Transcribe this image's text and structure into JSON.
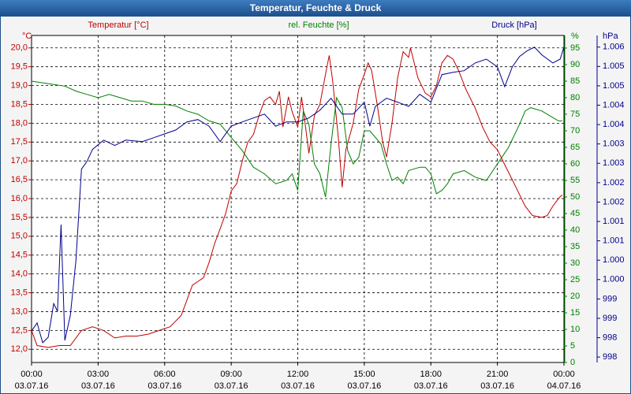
{
  "chart_data": {
    "type": "line",
    "title": "Temperatur, Feuchte & Druck",
    "ylabel": "°C",
    "y2label": "%",
    "y3label": "hPa",
    "xlim": [
      0,
      24
    ],
    "xticks": [
      {
        "value": 0,
        "label": "00:00"
      },
      {
        "value": 3,
        "label": "03:00"
      },
      {
        "value": 6,
        "label": "06:00"
      },
      {
        "value": 9,
        "label": "09:00"
      },
      {
        "value": 12,
        "label": "12:00"
      },
      {
        "value": 15,
        "label": "15:00"
      },
      {
        "value": 18,
        "label": "18:00"
      },
      {
        "value": 21,
        "label": "21:00"
      },
      {
        "value": 24,
        "label": "00:00"
      }
    ],
    "xtick_dates": [
      "03.07.16",
      "03.07.16",
      "03.07.16",
      "03.07.16",
      "03.07.16",
      "03.07.16",
      "03.07.16",
      "03.07.16",
      "04.07.16"
    ],
    "ylim": [
      11.65,
      20.33
    ],
    "yticks": [
      {
        "value": 12.0,
        "label": "12,0"
      },
      {
        "value": 12.5,
        "label": "12,5"
      },
      {
        "value": 13.0,
        "label": "13,0"
      },
      {
        "value": 13.5,
        "label": "13,5"
      },
      {
        "value": 14.0,
        "label": "14,0"
      },
      {
        "value": 14.5,
        "label": "14,5"
      },
      {
        "value": 15.0,
        "label": "15,0"
      },
      {
        "value": 15.5,
        "label": "15,5"
      },
      {
        "value": 16.0,
        "label": "16,0"
      },
      {
        "value": 16.5,
        "label": "16,5"
      },
      {
        "value": 17.0,
        "label": "17,0"
      },
      {
        "value": 17.5,
        "label": "17,5"
      },
      {
        "value": 18.0,
        "label": "18,0"
      },
      {
        "value": 18.5,
        "label": "18,5"
      },
      {
        "value": 19.0,
        "label": "19,0"
      },
      {
        "value": 19.5,
        "label": "19,5"
      },
      {
        "value": 20.0,
        "label": "20,0"
      }
    ],
    "y2lim": [
      0,
      98.8
    ],
    "y2ticks": [
      0,
      5,
      10,
      15,
      20,
      25,
      30,
      35,
      40,
      45,
      50,
      55,
      60,
      65,
      70,
      75,
      80,
      85,
      90,
      95
    ],
    "y3lim": [
      997.61,
      1006.05
    ],
    "y3ticks": [
      {
        "value": 997.75,
        "label": "998"
      },
      {
        "value": 998.25,
        "label": "998"
      },
      {
        "value": 998.75,
        "label": "999"
      },
      {
        "value": 999.25,
        "label": "999"
      },
      {
        "value": 999.75,
        "label": "1.000"
      },
      {
        "value": 1000.25,
        "label": "1.000"
      },
      {
        "value": 1000.75,
        "label": "1.001"
      },
      {
        "value": 1001.25,
        "label": "1.001"
      },
      {
        "value": 1001.75,
        "label": "1.002"
      },
      {
        "value": 1002.25,
        "label": "1.002"
      },
      {
        "value": 1002.75,
        "label": "1.003"
      },
      {
        "value": 1003.25,
        "label": "1.003"
      },
      {
        "value": 1003.75,
        "label": "1.004"
      },
      {
        "value": 1004.25,
        "label": "1.004"
      },
      {
        "value": 1004.75,
        "label": "1.005"
      },
      {
        "value": 1005.25,
        "label": "1.005"
      },
      {
        "value": 1005.75,
        "label": "1.006"
      }
    ],
    "grid": true,
    "series": [
      {
        "name": "Temperatur [°C]",
        "color": "#c00000",
        "axis": "y",
        "x": [
          0,
          0.25,
          0.75,
          1.25,
          1.75,
          2.25,
          2.75,
          3.25,
          3.75,
          4.25,
          4.75,
          5.25,
          5.75,
          6.25,
          6.75,
          7,
          7.25,
          7.75,
          8,
          8.25,
          8.5,
          8.75,
          9,
          9.25,
          9.5,
          9.75,
          10,
          10.25,
          10.5,
          10.75,
          11,
          11.17,
          11.33,
          11.58,
          11.75,
          12,
          12.17,
          12.33,
          12.5,
          12.75,
          13,
          13.25,
          13.42,
          13.58,
          13.83,
          14,
          14.17,
          14.5,
          14.75,
          15,
          15.17,
          15.33,
          15.58,
          15.83,
          16,
          16.25,
          16.5,
          16.75,
          17,
          17.08,
          17.42,
          17.75,
          18,
          18.25,
          18.5,
          18.75,
          19,
          19.25,
          19.58,
          20,
          20.33,
          20.67,
          21,
          21.33,
          21.67,
          22,
          22.25,
          22.58,
          23,
          23.25,
          23.5,
          23.75,
          23.92
        ],
        "values": [
          12.5,
          12.1,
          12.05,
          12.1,
          12.1,
          12.5,
          12.6,
          12.5,
          12.3,
          12.35,
          12.35,
          12.4,
          12.5,
          12.6,
          12.9,
          13.3,
          13.7,
          13.9,
          14.3,
          14.8,
          15.2,
          15.6,
          16.2,
          16.4,
          17.0,
          17.5,
          17.7,
          18.2,
          18.6,
          18.7,
          18.5,
          18.85,
          17.9,
          18.7,
          18.3,
          17.9,
          18.7,
          18.0,
          17.2,
          18.2,
          18.5,
          19.3,
          19.8,
          19.1,
          17.6,
          16.3,
          17.3,
          18.0,
          18.9,
          19.3,
          19.6,
          19.4,
          18.5,
          17.5,
          17.1,
          18.0,
          19.2,
          19.9,
          19.75,
          20.0,
          19.2,
          18.8,
          18.7,
          19.0,
          19.6,
          19.8,
          19.7,
          19.4,
          18.9,
          18.4,
          17.9,
          17.5,
          17.3,
          16.9,
          16.5,
          16.1,
          15.8,
          15.55,
          15.5,
          15.55,
          15.8,
          16.0,
          16.1
        ]
      },
      {
        "name": "rel. Feuchte [%]",
        "color": "#008000",
        "axis": "y2",
        "x": [
          0,
          0.5,
          1,
          1.5,
          2,
          2.5,
          3,
          3.5,
          4,
          4.5,
          5,
          5.5,
          6,
          6.5,
          7,
          7.5,
          8,
          8.5,
          9,
          9.5,
          10,
          10.5,
          11,
          11.5,
          11.75,
          12,
          12.25,
          12.5,
          12.75,
          13,
          13.25,
          13.5,
          13.75,
          14,
          14.25,
          14.5,
          14.75,
          15,
          15.25,
          15.75,
          16,
          16.25,
          16.5,
          16.75,
          17,
          17.5,
          17.75,
          18,
          18.25,
          18.5,
          18.75,
          19,
          19.5,
          20,
          20.5,
          21,
          21.5,
          22,
          22.25,
          22.5,
          23,
          23.5,
          23.75,
          23.92
        ],
        "values": [
          85,
          84.5,
          84,
          83.5,
          82,
          81,
          80,
          81,
          80,
          79,
          79,
          78,
          78,
          77.5,
          76,
          75,
          73,
          72,
          68,
          64,
          59,
          57,
          54,
          55,
          57,
          52,
          76,
          72,
          60,
          57,
          50,
          66,
          80,
          77,
          64,
          60,
          62,
          70,
          70,
          66,
          60,
          55,
          56,
          54,
          58,
          59,
          59,
          57,
          51,
          52,
          54,
          57,
          58,
          56,
          55,
          60,
          65,
          72,
          76,
          77,
          76,
          74,
          73,
          73
        ]
      },
      {
        "name": "Druck [hPa]",
        "color": "#00008b",
        "axis": "y3",
        "x": [
          0,
          0.25,
          0.5,
          0.75,
          1,
          1.17,
          1.33,
          1.5,
          1.75,
          2,
          2.25,
          2.5,
          2.75,
          3.25,
          3.75,
          4.25,
          5,
          5.5,
          6,
          6.5,
          7,
          7.5,
          8,
          8.5,
          9,
          9.5,
          10,
          10.5,
          11,
          11.5,
          12,
          12.5,
          13,
          13.5,
          14,
          14.5,
          15,
          15.25,
          15.5,
          16,
          16.5,
          17,
          17.5,
          18,
          18.5,
          19,
          19.5,
          20,
          20.5,
          21,
          21.33,
          21.67,
          22,
          22.33,
          22.67,
          23,
          23.5,
          23.83,
          24
        ],
        "values": [
          998.42,
          998.63,
          998.12,
          998.26,
          999.13,
          998.93,
          1001.17,
          998.18,
          998.83,
          1000.25,
          1002.6,
          1002.8,
          1003.11,
          1003.35,
          1003.21,
          1003.35,
          1003.31,
          1003.41,
          1003.51,
          1003.61,
          1003.82,
          1003.88,
          1003.71,
          1003.31,
          1003.71,
          1003.82,
          1003.92,
          1004.02,
          1003.71,
          1003.82,
          1003.82,
          1003.92,
          1004.12,
          1004.43,
          1004.02,
          1004.02,
          1004.33,
          1003.71,
          1004.22,
          1004.43,
          1004.33,
          1004.22,
          1004.53,
          1004.33,
          1005.04,
          1005.1,
          1005.14,
          1005.34,
          1005.44,
          1005.24,
          1004.73,
          1005.24,
          1005.51,
          1005.65,
          1005.75,
          1005.55,
          1005.34,
          1005.44,
          1005.75
        ]
      }
    ]
  }
}
